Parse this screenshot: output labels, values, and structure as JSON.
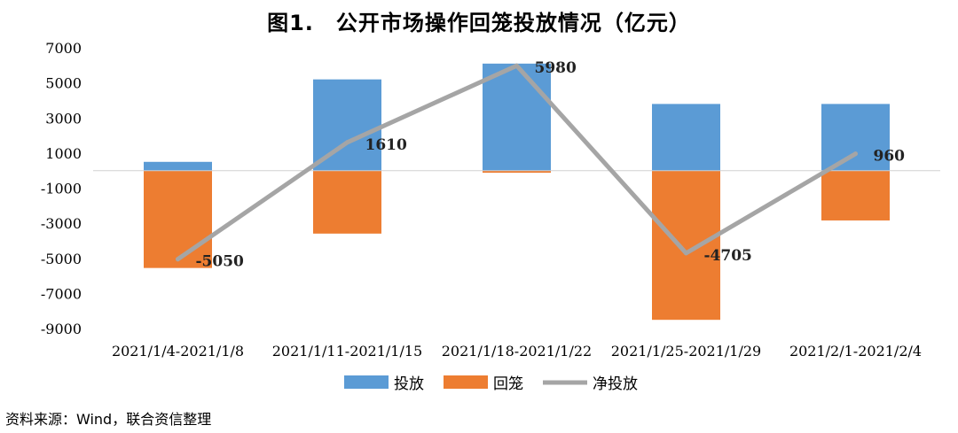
{
  "chart_data": {
    "type": "bar",
    "title": "图1.　公开市场操作回笼投放情况（亿元）",
    "categories": [
      "2021/1/4-2021/1/8",
      "2021/1/11-2021/1/15",
      "2021/1/18-2021/1/22",
      "2021/1/25-2021/1/29",
      "2021/2/1-2021/2/4"
    ],
    "series": [
      {
        "name": "投放",
        "kind": "bar",
        "color": "#5B9BD5",
        "values": [
          500,
          5200,
          6100,
          3800,
          3800
        ]
      },
      {
        "name": "回笼",
        "kind": "bar",
        "color": "#ED7D31",
        "values": [
          -5550,
          -3590,
          -120,
          -8505,
          -2840
        ]
      },
      {
        "name": "净投放",
        "kind": "line",
        "color": "#A5A5A5",
        "values": [
          -5050,
          1610,
          5980,
          -4705,
          960
        ]
      }
    ],
    "data_labels": [
      "-5050",
      "1610",
      "5980",
      "-4705",
      "960"
    ],
    "yticks": [
      "7000",
      "5000",
      "3000",
      "1000",
      "-1000",
      "-3000",
      "-5000",
      "-7000",
      "-9000"
    ],
    "ylim": [
      -9000,
      7000
    ],
    "grid": false,
    "legend_position": "bottom"
  },
  "source": "资料来源：Wind，联合资信整理"
}
